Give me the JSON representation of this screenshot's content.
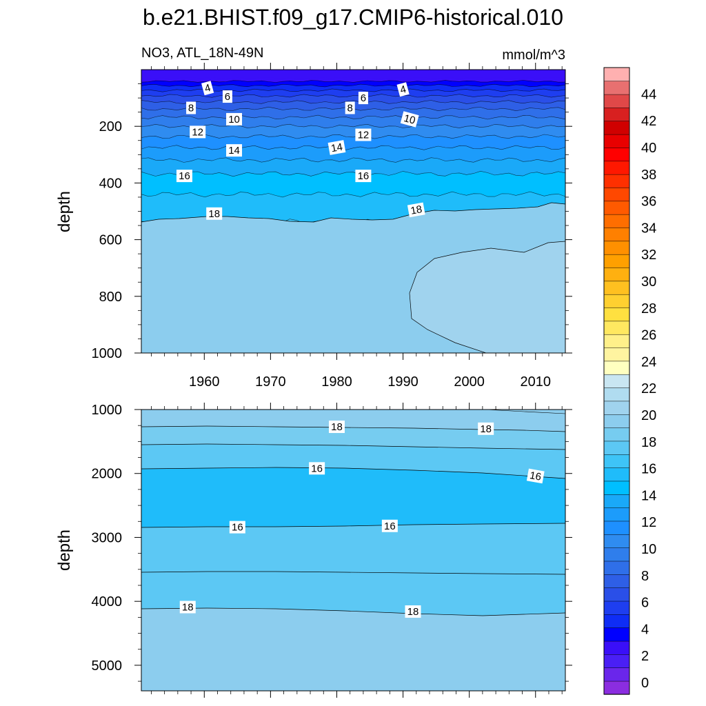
{
  "chart_data": {
    "type": "heatmap",
    "title": "b.e21.BHIST.f09_g17.CMIP6-historical.010",
    "left_string": "NO3, ATL_18N-49N",
    "right_string": "mmol/m^3",
    "x": {
      "range": [
        1950.5,
        2014.5
      ],
      "ticks": [
        1960,
        1970,
        1980,
        1990,
        2000,
        2010
      ],
      "tick_labels": [
        "1960",
        "1970",
        "1980",
        "1990",
        "2000",
        "2010"
      ]
    },
    "colorbar": {
      "levels": [
        0,
        2,
        4,
        6,
        8,
        10,
        12,
        14,
        16,
        18,
        20,
        22,
        24,
        26,
        28,
        30,
        32,
        34,
        36,
        38,
        40,
        42,
        44
      ],
      "labels": [
        "0",
        "2",
        "4",
        "6",
        "8",
        "10",
        "12",
        "14",
        "16",
        "18",
        "20",
        "22",
        "24",
        "26",
        "28",
        "30",
        "32",
        "34",
        "36",
        "38",
        "40",
        "42",
        "44"
      ],
      "colors": [
        "#8b2de0",
        "#6a26eb",
        "#4a1ff5",
        "#3a0ff8",
        "#0000ff",
        "#0f2df5",
        "#1e3ef0",
        "#2a4fe8",
        "#2e5fe6",
        "#2f6fe9",
        "#2f7eec",
        "#2f8cf0",
        "#1e90ff",
        "#1c9cfb",
        "#1aa9f8",
        "#00bfff",
        "#1fbcfa",
        "#3ec4f7",
        "#5cc8f4",
        "#76ccf0",
        "#8ccdee",
        "#a0d3ee",
        "#b0dcf0",
        "#c9e6f2",
        "#ffffc0",
        "#fff4a0",
        "#fff08a",
        "#ffe860",
        "#ffe040",
        "#ffd030",
        "#ffc020",
        "#ffb010",
        "#ffa000",
        "#ff9000",
        "#ff8000",
        "#ff6e00",
        "#ff5a00",
        "#ff4800",
        "#ff3000",
        "#ff1800",
        "#ff0000",
        "#e80000",
        "#d00000",
        "#d82020",
        "#e04848",
        "#e87070",
        "#ffb0b0"
      ]
    },
    "panels": [
      {
        "name": "upper",
        "ylabel": "depth",
        "y_range": [
          0,
          1000
        ],
        "y_ticks": [
          200,
          400,
          600,
          800,
          1000
        ],
        "y_tick_labels": [
          "200",
          "400",
          "600",
          "800",
          "1000"
        ],
        "show_x_labels": true,
        "contour_labels": [
          {
            "text": "4",
            "x": 1960.5,
            "y": 65,
            "rot": -15
          },
          {
            "text": "6",
            "x": 1963.5,
            "y": 95,
            "rot": 0
          },
          {
            "text": "8",
            "x": 1958,
            "y": 135,
            "rot": 0
          },
          {
            "text": "10",
            "x": 1964.5,
            "y": 175,
            "rot": 0
          },
          {
            "text": "12",
            "x": 1959,
            "y": 220,
            "rot": 0
          },
          {
            "text": "14",
            "x": 1964.5,
            "y": 285,
            "rot": 0
          },
          {
            "text": "16",
            "x": 1957,
            "y": 375,
            "rot": 0
          },
          {
            "text": "18",
            "x": 1961.5,
            "y": 508,
            "rot": 0
          },
          {
            "text": "8",
            "x": 1982,
            "y": 135,
            "rot": 0
          },
          {
            "text": "6",
            "x": 1984,
            "y": 100,
            "rot": 0
          },
          {
            "text": "4",
            "x": 1990,
            "y": 70,
            "rot": -15
          },
          {
            "text": "10",
            "x": 1991,
            "y": 175,
            "rot": 15
          },
          {
            "text": "12",
            "x": 1984,
            "y": 230,
            "rot": 0
          },
          {
            "text": "14",
            "x": 1980,
            "y": 275,
            "rot": -10
          },
          {
            "text": "16",
            "x": 1984,
            "y": 375,
            "rot": 0
          },
          {
            "text": "18",
            "x": 1992,
            "y": 495,
            "rot": -10
          }
        ]
      },
      {
        "name": "lower",
        "ylabel": "depth",
        "y_range": [
          1000,
          5400
        ],
        "y_ticks": [
          1000,
          2000,
          3000,
          4000,
          5000
        ],
        "y_tick_labels": [
          "1000",
          "2000",
          "3000",
          "4000",
          "5000"
        ],
        "show_x_labels": false,
        "contour_labels": [
          {
            "text": "18",
            "x": 1980,
            "y": 1270,
            "rot": 0
          },
          {
            "text": "18",
            "x": 2002.5,
            "y": 1300,
            "rot": 0
          },
          {
            "text": "16",
            "x": 1977,
            "y": 1920,
            "rot": 0
          },
          {
            "text": "16",
            "x": 2010,
            "y": 2040,
            "rot": 10
          },
          {
            "text": "16",
            "x": 1965,
            "y": 2840,
            "rot": 0
          },
          {
            "text": "16",
            "x": 1988,
            "y": 2820,
            "rot": 0
          },
          {
            "text": "18",
            "x": 1957.5,
            "y": 4090,
            "rot": 0
          },
          {
            "text": "18",
            "x": 1991.5,
            "y": 4160,
            "rot": 0
          }
        ]
      }
    ]
  }
}
